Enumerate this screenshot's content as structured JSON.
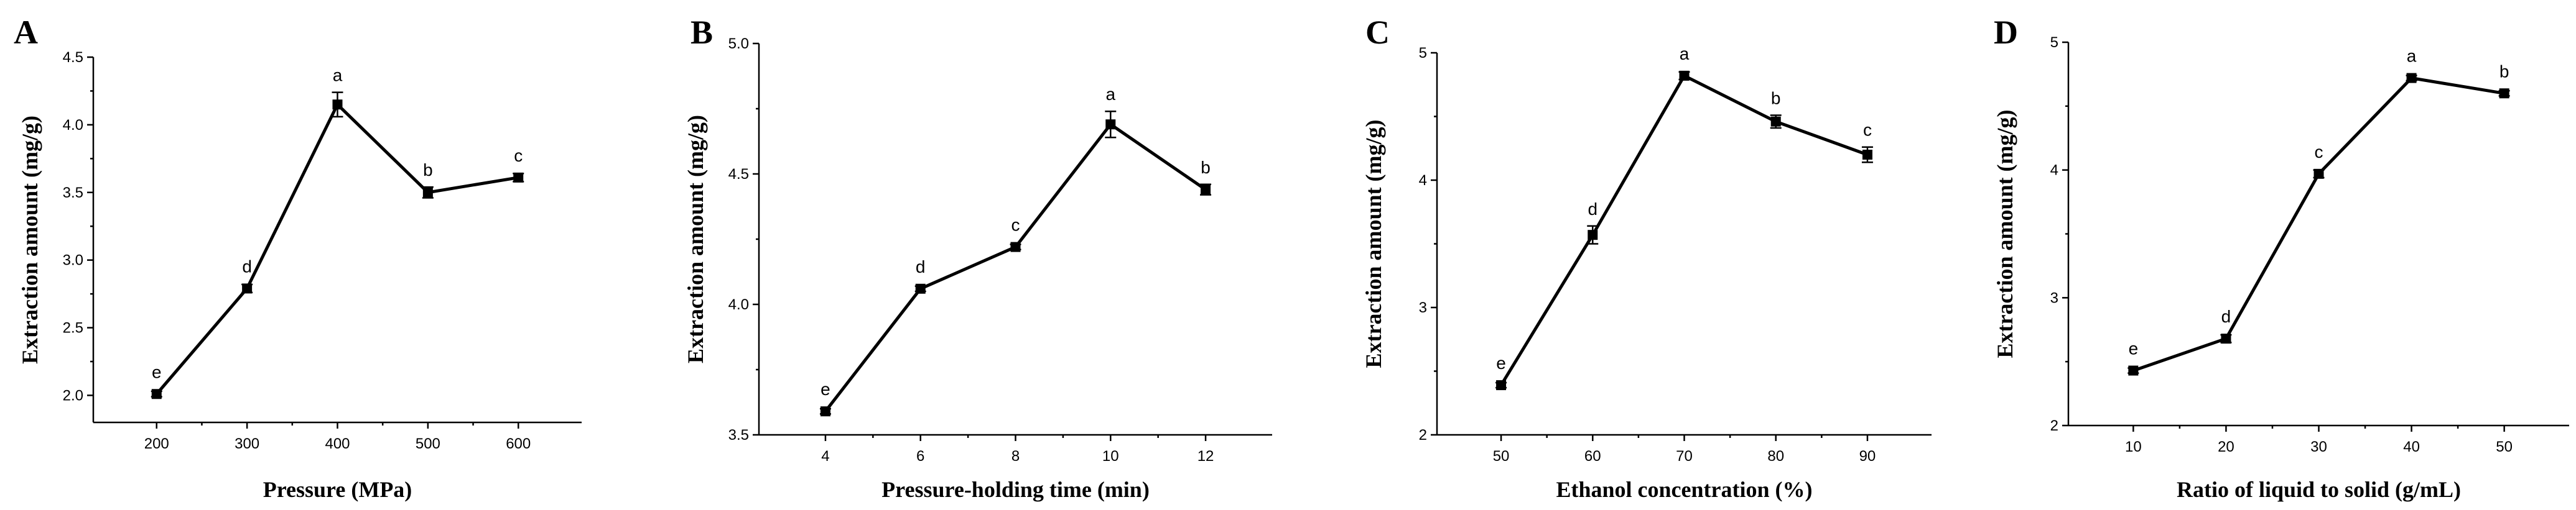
{
  "chart_data": [
    {
      "type": "line",
      "panel": "A",
      "xlabel": "Pressure (MPa)",
      "ylabel": "Extraction amount (mg/g)",
      "x": [
        200,
        300,
        400,
        500,
        600
      ],
      "values": [
        2.01,
        2.79,
        4.15,
        3.5,
        3.61
      ],
      "errors": [
        0.02,
        0.03,
        0.09,
        0.04,
        0.03
      ],
      "labels": [
        "e",
        "d",
        "a",
        "b",
        "c"
      ],
      "xticks": [
        200,
        300,
        400,
        500,
        600
      ],
      "yticks": [
        "2.0",
        "2.5",
        "3.0",
        "3.5",
        "4.0",
        "4.5"
      ],
      "xlim": [
        130,
        670
      ],
      "ylim": [
        1.8,
        4.5
      ]
    },
    {
      "type": "line",
      "panel": "B",
      "xlabel": "Pressure-holding time (min)",
      "ylabel": "Extraction amount (mg/g)",
      "x": [
        4,
        6,
        8,
        10,
        12
      ],
      "values": [
        3.59,
        4.06,
        4.22,
        4.69,
        4.44
      ],
      "errors": [
        0.01,
        0.01,
        0.01,
        0.05,
        0.02
      ],
      "labels": [
        "e",
        "d",
        "c",
        "a",
        "b"
      ],
      "xticks": [
        4,
        6,
        8,
        10,
        12
      ],
      "yticks": [
        "3.5",
        "4.0",
        "4.5",
        "5.0"
      ],
      "xlim": [
        2.6,
        13.4
      ],
      "ylim": [
        3.5,
        5.0
      ]
    },
    {
      "type": "line",
      "panel": "C",
      "xlabel": "Ethanol concentration (%)",
      "ylabel": "Extraction amount (mg/g)",
      "x": [
        50,
        60,
        70,
        80,
        90
      ],
      "values": [
        2.39,
        3.57,
        4.82,
        4.46,
        4.2
      ],
      "errors": [
        0.02,
        0.07,
        0.03,
        0.05,
        0.06
      ],
      "labels": [
        "e",
        "d",
        "a",
        "b",
        "c"
      ],
      "xticks": [
        50,
        60,
        70,
        80,
        90
      ],
      "yticks": [
        "2",
        "3",
        "4",
        "5"
      ],
      "xlim": [
        43,
        97
      ],
      "ylim": [
        2,
        5
      ]
    },
    {
      "type": "line",
      "panel": "D",
      "xlabel": "Ratio of liquid to solid  (g/mL)",
      "ylabel": "Extraction amount (mg/g)",
      "x": [
        10,
        20,
        30,
        40,
        50
      ],
      "values": [
        2.43,
        2.68,
        3.97,
        4.72,
        4.6
      ],
      "errors": [
        0.02,
        0.03,
        0.03,
        0.02,
        0.02
      ],
      "labels": [
        "e",
        "d",
        "c",
        "a",
        "b"
      ],
      "xticks": [
        10,
        20,
        30,
        40,
        50
      ],
      "yticks": [
        "2",
        "3",
        "4",
        "5"
      ],
      "xlim": [
        3,
        57
      ],
      "ylim": [
        2,
        5
      ]
    }
  ]
}
